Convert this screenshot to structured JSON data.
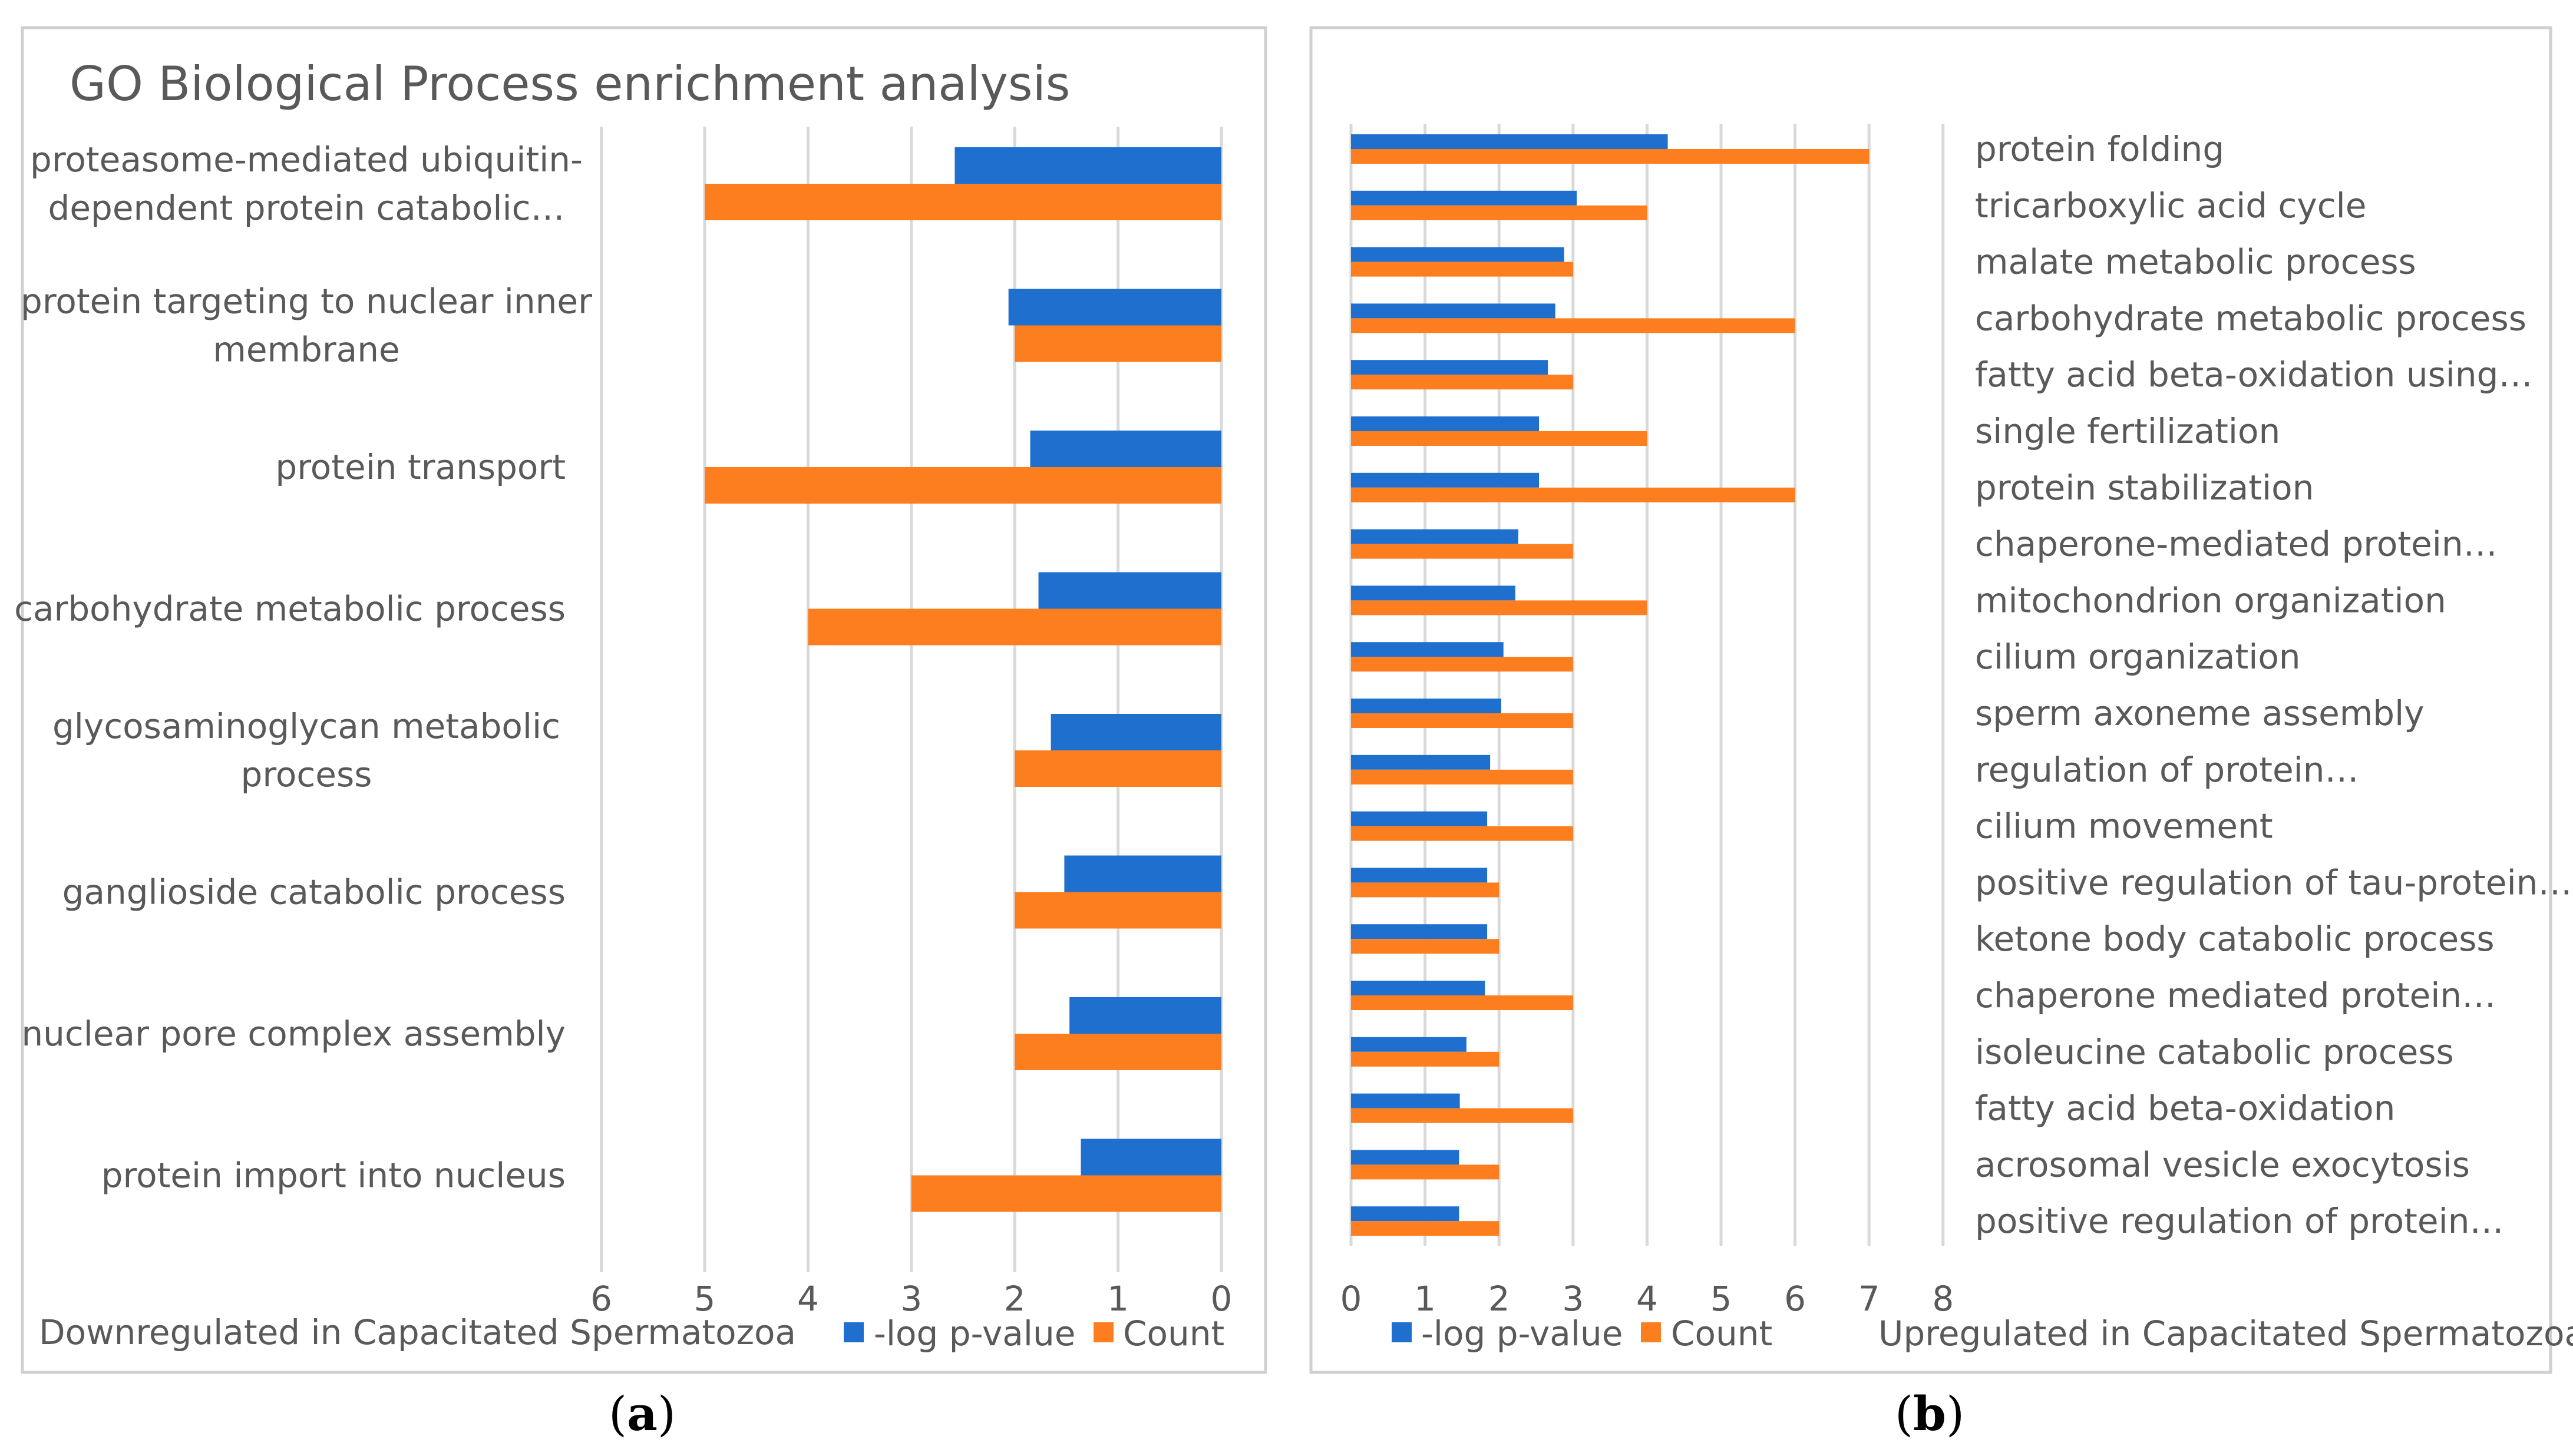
{
  "colors": {
    "series1": "#1f6fcf",
    "series2": "#fd7e1f",
    "text": "#595959",
    "grid": "#d9d9d9"
  },
  "chart_data": [
    {
      "type": "bar",
      "orientation": "horizontal",
      "title": "GO Biological Process enrichment analysis",
      "xlabel": "Downregulated in Capacitated Spermatozoa",
      "caption": "a",
      "xlim": [
        6,
        0
      ],
      "xticks": [
        "6",
        "5",
        "4",
        "3",
        "2",
        "1",
        "0"
      ],
      "categories": [
        [
          "proteasome-mediated ubiquitin-",
          "dependent protein catabolic…"
        ],
        [
          "protein targeting to nuclear inner",
          "membrane"
        ],
        [
          "protein transport"
        ],
        [
          "carbohydrate metabolic process"
        ],
        [
          "glycosaminoglycan metabolic",
          "process"
        ],
        [
          "ganglioside catabolic process"
        ],
        [
          "nuclear pore complex assembly"
        ],
        [
          "protein import into nucleus"
        ]
      ],
      "series": [
        {
          "name": "-log p-value",
          "values": [
            2.58,
            2.06,
            1.85,
            1.77,
            1.65,
            1.52,
            1.47,
            1.36
          ]
        },
        {
          "name": "Count",
          "values": [
            5,
            2,
            5,
            4,
            2,
            2,
            2,
            3
          ]
        }
      ],
      "legend": "bottom-right"
    },
    {
      "type": "bar",
      "orientation": "horizontal",
      "title": "",
      "xlabel": "Upregulated in Capacitated Spermatozoa",
      "caption": "b",
      "xlim": [
        0,
        8
      ],
      "xticks": [
        "0",
        "1",
        "2",
        "3",
        "4",
        "5",
        "6",
        "7",
        "8"
      ],
      "categories": [
        [
          "protein folding"
        ],
        [
          "tricarboxylic acid cycle"
        ],
        [
          "malate metabolic process"
        ],
        [
          "carbohydrate metabolic process"
        ],
        [
          "fatty acid beta-oxidation using…"
        ],
        [
          "single fertilization"
        ],
        [
          "protein stabilization"
        ],
        [
          "chaperone-mediated protein…"
        ],
        [
          "mitochondrion organization"
        ],
        [
          "cilium organization"
        ],
        [
          "sperm axoneme assembly"
        ],
        [
          "regulation of protein…"
        ],
        [
          "cilium movement"
        ],
        [
          "positive regulation of tau-protein…"
        ],
        [
          "ketone body catabolic process"
        ],
        [
          "chaperone mediated protein…"
        ],
        [
          "isoleucine catabolic process"
        ],
        [
          "fatty acid beta-oxidation"
        ],
        [
          "acrosomal vesicle exocytosis"
        ],
        [
          "positive regulation of protein…"
        ]
      ],
      "series": [
        {
          "name": "-log p-value",
          "values": [
            4.28,
            3.05,
            2.88,
            2.76,
            2.66,
            2.54,
            2.54,
            2.26,
            2.22,
            2.06,
            2.03,
            1.88,
            1.84,
            1.84,
            1.84,
            1.81,
            1.56,
            1.47,
            1.46,
            1.46
          ]
        },
        {
          "name": "Count",
          "values": [
            7,
            4,
            3,
            6,
            3,
            4,
            6,
            3,
            4,
            3,
            3,
            3,
            3,
            2,
            2,
            3,
            2,
            3,
            2,
            2
          ]
        }
      ],
      "legend": "bottom-center"
    }
  ]
}
